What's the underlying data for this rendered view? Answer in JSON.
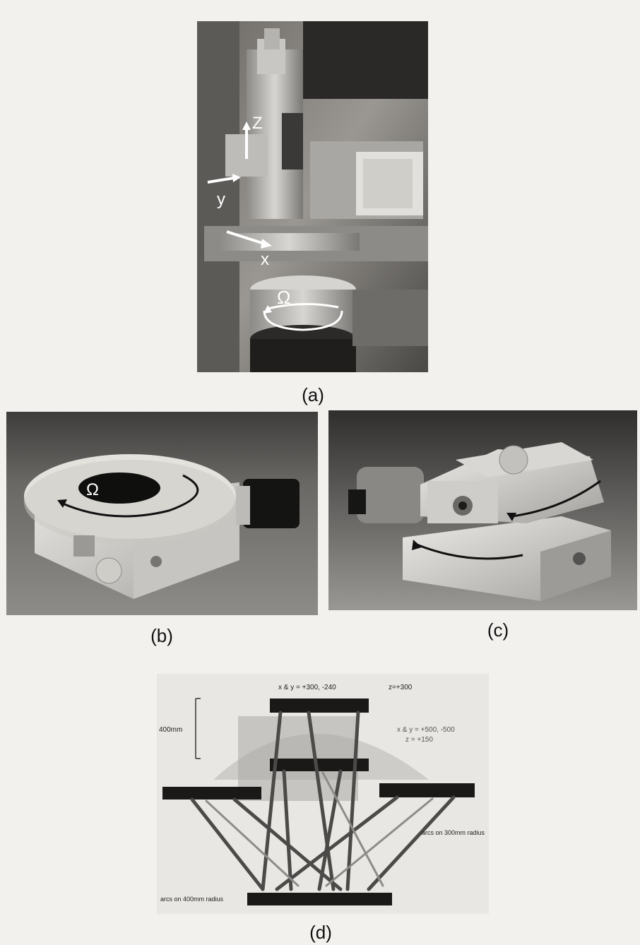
{
  "figure": {
    "panel_a": {
      "caption": "(a)",
      "axis_labels": {
        "z": "Z",
        "y": "y",
        "x": "x",
        "omega": "Ω"
      }
    },
    "panel_b": {
      "caption": "(b)",
      "omega_label": "Ω"
    },
    "panel_c": {
      "caption": "(c)"
    },
    "panel_d": {
      "caption": "(d)",
      "annotations": {
        "top_xy": "x & y = +300, -240",
        "top_z": "z=+300",
        "height_scale": "400mm",
        "right_xy": "x & y = +500, -500",
        "right_z": "z = +150",
        "right_arc": "arcs on 300mm radius",
        "bottom_arc": "arcs on 400mm radius"
      }
    }
  }
}
